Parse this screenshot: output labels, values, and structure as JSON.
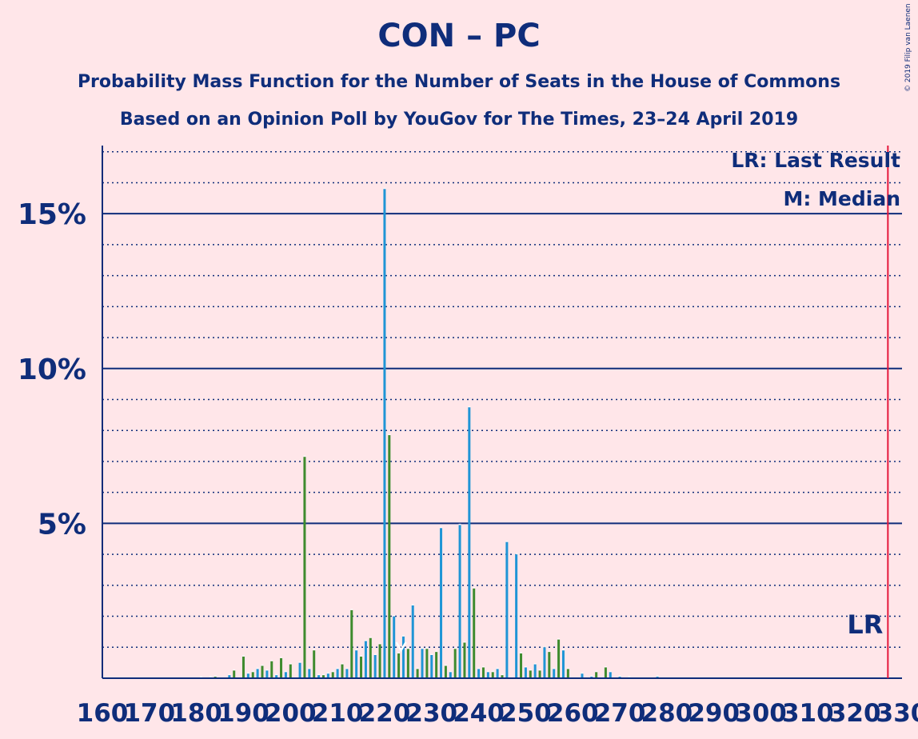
{
  "chart_data": {
    "type": "bar",
    "title": "CON – PC",
    "subtitle": "Probability Mass Function for the Number of Seats in the House of Commons",
    "subtitle2": "Based on an Opinion Poll by YouGov for The Times, 23–24 April 2019",
    "copyright": "© 2019 Filip van Laenen",
    "legend": [
      "LR: Last Result",
      "M: Median"
    ],
    "last_result_label": "LR",
    "last_result": 327,
    "median": 223,
    "xlim": [
      160,
      330
    ],
    "ylim": [
      0,
      17.2
    ],
    "xticks": [
      160,
      170,
      180,
      190,
      200,
      210,
      220,
      230,
      240,
      250,
      260,
      270,
      280,
      290,
      300,
      310,
      320,
      330
    ],
    "xtick_labels": [
      "160",
      "170",
      "180",
      "190",
      "200",
      "210",
      "220",
      "230",
      "240",
      "250",
      "260",
      "270",
      "280",
      "290",
      "300",
      "310",
      "320",
      "330"
    ],
    "ytick_labels": [
      {
        "value": 5,
        "label": "5%"
      },
      {
        "value": 10,
        "label": "10%"
      },
      {
        "value": 15,
        "label": "15%"
      }
    ],
    "grid_minor_step": 1,
    "grid_major_step": 5,
    "colors": {
      "blue_series": "#1f95d6",
      "green_series": "#3e8b2e",
      "text": "#0f2d7a",
      "grid": "#0f2d7a",
      "last_result_line": "#e4173b",
      "background": "#ffe6e9"
    },
    "series": [
      {
        "color_key": "blue_series",
        "x": [
          181,
          183,
          187,
          191,
          193,
          195,
          197,
          199,
          202,
          204,
          206,
          208,
          210,
          212,
          214,
          216,
          218,
          220,
          222,
          224,
          226,
          228,
          230,
          232,
          234,
          236,
          238,
          240,
          242,
          244,
          246,
          248,
          250,
          252,
          254,
          256,
          258,
          262,
          264,
          268,
          270,
          272,
          278
        ],
        "values": [
          0.02,
          0.03,
          0.1,
          0.15,
          0.3,
          0.25,
          0.1,
          0.2,
          0.5,
          0.3,
          0.1,
          0.15,
          0.3,
          0.3,
          0.9,
          1.2,
          0.75,
          15.8,
          2.0,
          1.35,
          2.35,
          0.95,
          0.75,
          4.85,
          0.2,
          4.95,
          8.75,
          0.3,
          0.2,
          0.3,
          4.4,
          4.0,
          0.35,
          0.45,
          1.0,
          0.3,
          0.9,
          0.15,
          0.05,
          0.2,
          0.05,
          0.03,
          0.05
        ]
      },
      {
        "color_key": "green_series",
        "x": [
          184,
          188,
          190,
          192,
          194,
          196,
          198,
          200,
          203,
          205,
          207,
          209,
          211,
          213,
          215,
          217,
          219,
          221,
          223,
          225,
          227,
          229,
          231,
          233,
          235,
          237,
          239,
          241,
          243,
          245,
          249,
          251,
          253,
          255,
          257,
          259,
          265,
          267
        ],
        "values": [
          0.05,
          0.25,
          0.7,
          0.2,
          0.4,
          0.55,
          0.65,
          0.45,
          7.15,
          0.9,
          0.1,
          0.2,
          0.45,
          2.2,
          0.7,
          1.3,
          1.1,
          7.85,
          0.8,
          0.95,
          0.3,
          0.95,
          0.85,
          0.4,
          0.95,
          1.15,
          2.9,
          0.35,
          0.2,
          0.1,
          0.8,
          0.25,
          0.25,
          0.85,
          1.25,
          0.3,
          0.2,
          0.35
        ]
      }
    ]
  }
}
